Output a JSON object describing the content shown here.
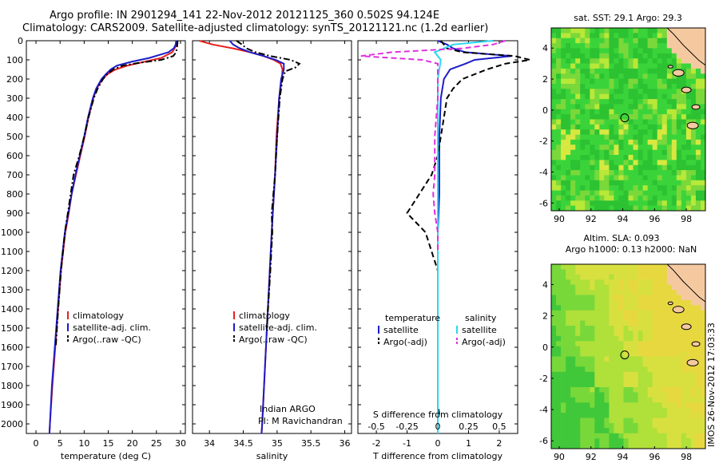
{
  "header": {
    "title_line1": "Argo profile: IN 2901294_141 22-Nov-2012 20121125_360 0.502S 94.124E",
    "title_line2": "Climatology: CARS2009. Satellite-adjusted climatology: synTS_20121121.nc (1.2d earlier)"
  },
  "stamp": "IMOS 26-Nov-2012 17:03:33",
  "colors": {
    "climatology": "#e8201c",
    "satellite_adj": "#1c1cc8",
    "argo": "#000000",
    "salinity_sat": "#28d8f0",
    "salinity_argo": "#e030e0",
    "land": "#f5c9a0",
    "ocean_green": "#3ad43a",
    "ocean_yellow": "#e8e840"
  },
  "chart_data": [
    {
      "type": "line",
      "xlabel": "temperature (deg C)",
      "ylabel": "",
      "xlim": [
        -2,
        31
      ],
      "ylim": [
        2050,
        0
      ],
      "xticks": [
        0,
        5,
        10,
        15,
        20,
        25,
        30
      ],
      "yticks": [
        0,
        100,
        200,
        300,
        400,
        500,
        600,
        700,
        800,
        900,
        1000,
        1100,
        1200,
        1300,
        1400,
        1500,
        1600,
        1700,
        1800,
        1900,
        2000
      ],
      "legend": [
        "climatology",
        "satellite-adj. clim.",
        "Argo(..raw -QC)"
      ],
      "series": [
        {
          "name": "climatology",
          "style": "solid",
          "color": "#e8201c",
          "depth": [
            0,
            30,
            60,
            90,
            110,
            130,
            150,
            175,
            200,
            250,
            300,
            400,
            500,
            600,
            700,
            800,
            900,
            1000,
            1200,
            1400,
            1600,
            1800,
            2000,
            2050
          ],
          "values": [
            29.2,
            29.0,
            28.3,
            26.0,
            22.5,
            19.0,
            16.5,
            14.8,
            13.8,
            12.6,
            11.9,
            10.9,
            10.1,
            9.2,
            8.3,
            7.4,
            6.8,
            6.1,
            5.2,
            4.6,
            4.0,
            3.4,
            2.9,
            2.8
          ]
        },
        {
          "name": "satellite-adj. clim.",
          "style": "solid",
          "color": "#1c1cc8",
          "depth": [
            0,
            20,
            40,
            60,
            90,
            110,
            130,
            150,
            175,
            200,
            250,
            300,
            400,
            500,
            600,
            700,
            800,
            900,
            1000,
            1200,
            1400,
            1600,
            1800,
            2000,
            2050
          ],
          "values": [
            29.1,
            29.0,
            28.6,
            27.5,
            23.5,
            19.8,
            16.8,
            15.5,
            14.5,
            13.6,
            12.5,
            11.8,
            10.8,
            10.0,
            9.1,
            8.2,
            7.4,
            6.7,
            6.0,
            5.1,
            4.5,
            3.9,
            3.3,
            2.9,
            2.8
          ]
        },
        {
          "name": "Argo(..raw -QC)",
          "style": "dashdot",
          "color": "#000000",
          "depth": [
            0,
            30,
            60,
            80,
            100,
            115,
            130,
            150,
            175,
            200,
            250,
            300,
            400,
            500,
            600,
            700,
            800,
            900,
            1000,
            1200,
            1400,
            1600
          ],
          "values": [
            29.4,
            29.3,
            29.1,
            28.5,
            26.0,
            21.5,
            18.0,
            16.0,
            14.8,
            13.9,
            12.8,
            12.0,
            10.9,
            10.0,
            9.0,
            7.8,
            7.2,
            6.6,
            6.0,
            5.2,
            4.6,
            4.1
          ]
        }
      ]
    },
    {
      "type": "line",
      "xlabel": "salinity",
      "xlim": [
        33.75,
        36.1
      ],
      "ylim": [
        2050,
        0
      ],
      "xticks": [
        34,
        34.5,
        35,
        35.5,
        36
      ],
      "legend": [
        "climatology",
        "satellite-adj. clim.",
        "Argo(..raw -QC)"
      ],
      "annotation": [
        "Indian ARGO",
        "PI: M Ravichandran"
      ],
      "series": [
        {
          "name": "climatology",
          "style": "solid",
          "color": "#e8201c",
          "depth": [
            0,
            20,
            40,
            60,
            80,
            100,
            120,
            150,
            200,
            300,
            500,
            700,
            1000,
            1500,
            2000,
            2050
          ],
          "values": [
            33.85,
            34.05,
            34.35,
            34.6,
            34.8,
            34.95,
            35.05,
            35.08,
            35.07,
            35.03,
            34.99,
            34.97,
            34.92,
            34.85,
            34.78,
            34.77
          ]
        },
        {
          "name": "satellite-adj. clim.",
          "style": "solid",
          "color": "#1c1cc8",
          "depth": [
            0,
            20,
            40,
            60,
            80,
            100,
            120,
            150,
            200,
            300,
            500,
            700,
            1000,
            1500,
            2000,
            2050
          ],
          "values": [
            34.3,
            34.35,
            34.45,
            34.6,
            34.8,
            34.98,
            35.1,
            35.1,
            35.06,
            35.03,
            35.0,
            34.97,
            34.92,
            34.85,
            34.78,
            34.77
          ]
        },
        {
          "name": "Argo(..raw -QC)",
          "style": "dashdot",
          "color": "#000000",
          "depth": [
            0,
            20,
            40,
            60,
            80,
            100,
            120,
            140,
            160,
            200,
            300,
            500,
            700,
            900,
            1000,
            1200,
            1500
          ],
          "values": [
            34.4,
            34.48,
            34.55,
            34.68,
            34.9,
            35.2,
            35.33,
            35.27,
            35.12,
            35.08,
            35.04,
            35.0,
            34.97,
            34.92,
            34.93,
            34.9,
            34.85
          ]
        }
      ]
    },
    {
      "type": "line",
      "xlabel": "T difference from climatology",
      "xlabel2": "S difference from climatology",
      "xlim": [
        -2.6,
        2.6
      ],
      "ylim": [
        2050,
        0
      ],
      "xticks": [
        -2,
        -1,
        0,
        1,
        2
      ],
      "xticks_top_values": [
        -0.5,
        -0.25,
        0,
        0.25,
        0.5
      ],
      "xticks_top_labels": [
        "-0.5",
        "-0.25",
        "0",
        "0.25",
        "0.5"
      ],
      "legend": [
        {
          "group": "temperature",
          "entries": [
            "satellite",
            "Argo(-adj)"
          ]
        },
        {
          "group": "salinity",
          "entries": [
            "satellite",
            "Argo(-adj)"
          ]
        }
      ],
      "series": [
        {
          "name": "satellite",
          "group": "temperature",
          "style": "solid",
          "color": "#1c1cc8",
          "depth": [
            0,
            20,
            40,
            60,
            80,
            100,
            120,
            150,
            200,
            300,
            500,
            700,
            800,
            1000,
            1500,
            2000,
            2050
          ],
          "values": [
            0.0,
            0.3,
            0.5,
            0.9,
            2.4,
            1.2,
            0.9,
            0.4,
            0.2,
            0.1,
            0.05,
            0.05,
            0.05,
            0.0,
            0.0,
            0.0,
            0.0
          ]
        },
        {
          "name": "Argo(-adj)",
          "group": "temperature",
          "style": "dashed",
          "color": "#000000",
          "depth": [
            0,
            40,
            60,
            80,
            100,
            120,
            150,
            200,
            250,
            300,
            400,
            500,
            600,
            700,
            800,
            850,
            900,
            950,
            1000,
            1100,
            1200,
            1500,
            1900,
            1950
          ],
          "values": [
            0.1,
            0.3,
            0.8,
            2.5,
            3.0,
            2.2,
            1.6,
            0.8,
            0.5,
            0.3,
            0.2,
            0.1,
            0.0,
            -0.2,
            -0.6,
            -0.8,
            -1.0,
            -0.7,
            -0.4,
            -0.2,
            0.0,
            0.0,
            0.0,
            0.05
          ]
        },
        {
          "name": "satellite",
          "group": "salinity",
          "style": "solid",
          "color": "#28d8f0",
          "depth": [
            0,
            20,
            40,
            60,
            80,
            100,
            150,
            200,
            300,
            500,
            700,
            1000,
            1500,
            2000,
            2050
          ],
          "values": [
            1.8,
            0.5,
            0.2,
            -0.1,
            0.0,
            0.1,
            0.05,
            0.0,
            0.0,
            0.0,
            0.0,
            0.0,
            0.0,
            0.0,
            0.0
          ]
        },
        {
          "name": "Argo(-adj)",
          "group": "salinity",
          "style": "dashed",
          "color": "#e030e0",
          "depth": [
            0,
            20,
            40,
            60,
            80,
            100,
            120,
            150,
            200,
            300,
            500,
            700,
            800,
            900,
            1000,
            1100
          ],
          "values": [
            2.2,
            1.8,
            0.8,
            -1.5,
            -2.5,
            -0.5,
            0.0,
            0.0,
            0.0,
            0.0,
            -0.1,
            -0.1,
            -0.15,
            -0.1,
            0.0,
            0.0
          ]
        }
      ]
    },
    {
      "type": "heatmap",
      "title": "sat. SST: 29.1 Argo: 29.3",
      "xlim": [
        89.5,
        99.2
      ],
      "ylim": [
        -6.5,
        5.3
      ],
      "xticks": [
        90,
        92,
        94,
        96,
        98
      ],
      "yticks": [
        -6,
        -4,
        -2,
        0,
        2,
        4
      ],
      "marker": {
        "lon": 94.124,
        "lat": -0.502
      }
    },
    {
      "type": "heatmap",
      "title": "Altim. SLA: 0.093",
      "subtitle": "Argo h1000: 0.13 h2000: NaN",
      "xlim": [
        89.5,
        99.2
      ],
      "ylim": [
        -6.5,
        5.3
      ],
      "xticks": [
        90,
        92,
        94,
        96,
        98
      ],
      "yticks": [
        -6,
        -4,
        -2,
        0,
        2,
        4
      ],
      "marker": {
        "lon": 94.124,
        "lat": -0.502
      }
    }
  ]
}
